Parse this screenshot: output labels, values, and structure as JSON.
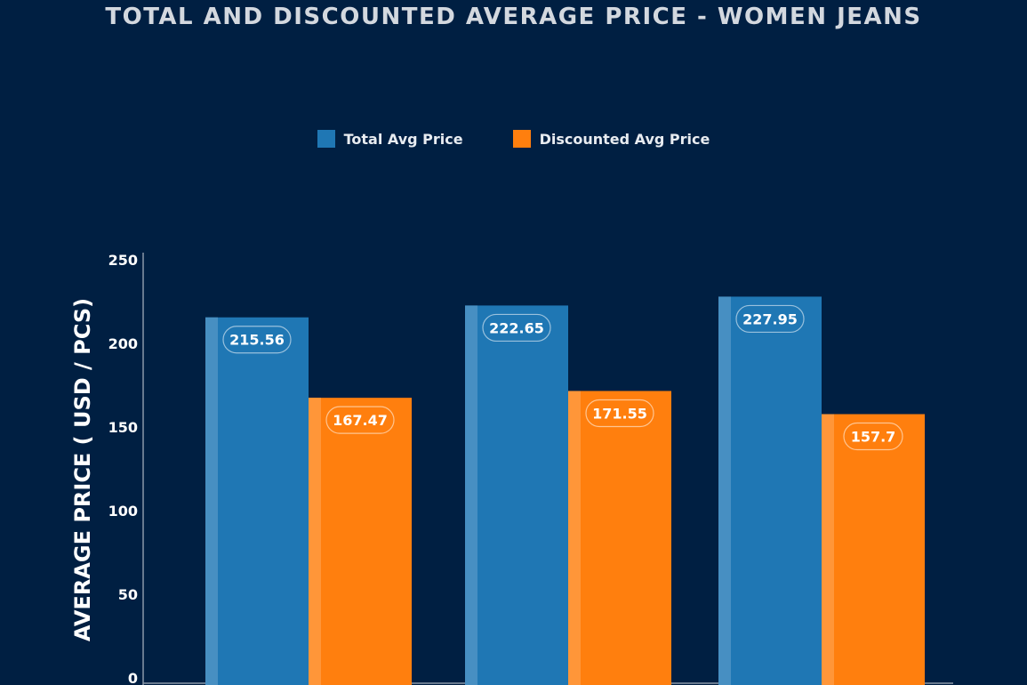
{
  "chart_data": {
    "type": "bar",
    "title": "TOTAL AND DISCOUNTED AVERAGE PRICE - WOMEN JEANS",
    "xlabel": "",
    "ylabel": "AVERAGE PRICE ( USD / PCS)",
    "ylim": [
      0,
      250
    ],
    "yticks": [
      "0",
      "50",
      "100",
      "150",
      "200",
      "250"
    ],
    "grid": false,
    "legend_position": "top-center",
    "categories": [
      "",
      "",
      ""
    ],
    "series": [
      {
        "name": "Total Avg Price",
        "color": "#1f77b4",
        "values": [
          215.56,
          222.65,
          227.95
        ],
        "labels": [
          "215.56",
          "222.65",
          "227.95"
        ]
      },
      {
        "name": "Discounted Avg Price",
        "color": "#ff7f0e",
        "values": [
          167.47,
          171.55,
          157.7
        ],
        "labels": [
          "167.47",
          "171.55",
          "157.7"
        ]
      }
    ]
  }
}
